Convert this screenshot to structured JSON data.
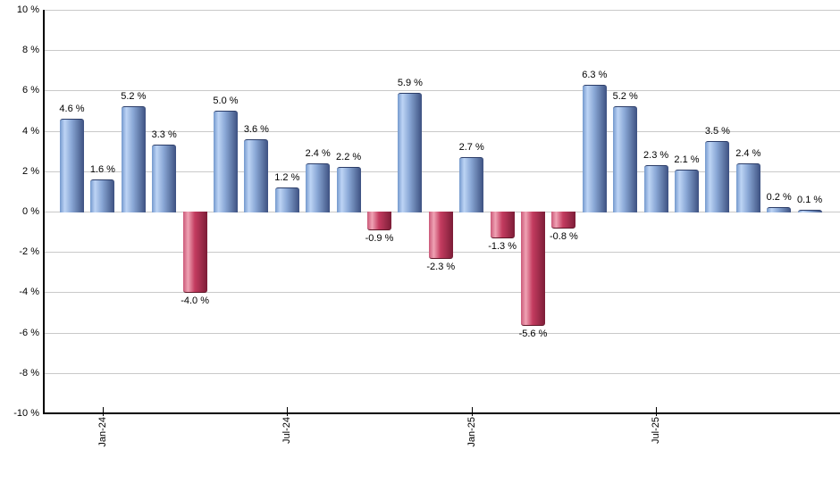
{
  "chart_data": {
    "type": "bar",
    "description": "Monthly returns bar chart, positive months blue, negative months red",
    "values": [
      4.6,
      1.6,
      5.2,
      3.3,
      -4.0,
      5.0,
      3.6,
      1.2,
      2.4,
      2.2,
      -0.9,
      5.9,
      -2.3,
      2.7,
      -1.3,
      -5.6,
      -0.8,
      6.3,
      5.2,
      2.3,
      2.1,
      3.5,
      2.4,
      0.2,
      0.1
    ],
    "value_labels": [
      "4.6 %",
      "1.6 %",
      "5.2 %",
      "3.3 %",
      "-4.0 %",
      "5.0 %",
      "3.6 %",
      "1.2 %",
      "2.4 %",
      "2.2 %",
      "-0.9 %",
      "5.9 %",
      "-2.3 %",
      "2.7 %",
      "-1.3 %",
      "-5.6 %",
      "-0.8 %",
      "6.3 %",
      "5.2 %",
      "2.3 %",
      "2.1 %",
      "3.5 %",
      "2.4 %",
      "0.2 %",
      "0.1 %"
    ],
    "x_ticks": [
      {
        "index": 1,
        "label": "Jan-24"
      },
      {
        "index": 7,
        "label": "Jul-24"
      },
      {
        "index": 13,
        "label": "Jan-25"
      },
      {
        "index": 19,
        "label": "Jul-25"
      }
    ],
    "y_ticks": [
      {
        "value": 10,
        "label": "10 %"
      },
      {
        "value": 8,
        "label": "8 %"
      },
      {
        "value": 6,
        "label": "6 %"
      },
      {
        "value": 4,
        "label": "4 %"
      },
      {
        "value": 2,
        "label": "2 %"
      },
      {
        "value": 0,
        "label": "0 %"
      },
      {
        "value": -2,
        "label": "-2 %"
      },
      {
        "value": -4,
        "label": "-4 %"
      },
      {
        "value": -6,
        "label": "-6 %"
      },
      {
        "value": -8,
        "label": "-8 %"
      },
      {
        "value": -10,
        "label": "-10 %"
      }
    ],
    "ylim": [
      -10,
      10
    ],
    "grid": true,
    "legend": false,
    "title": "",
    "xlabel": "",
    "ylabel": "",
    "colors": {
      "positive_bar_stops": [
        "#7499cd",
        "#bdd4f5",
        "#8aa8d6",
        "#3d5181"
      ],
      "negative_bar_stops": [
        "#cb5878",
        "#efa3b4",
        "#c43c60",
        "#7c1d37"
      ],
      "positive_bar_edge": "#2c3d68",
      "negative_bar_edge": "#5e1527",
      "gridline": "#c9c9c9",
      "axis": "#000000",
      "label_text": "#000000",
      "background": "#ffffff"
    }
  }
}
